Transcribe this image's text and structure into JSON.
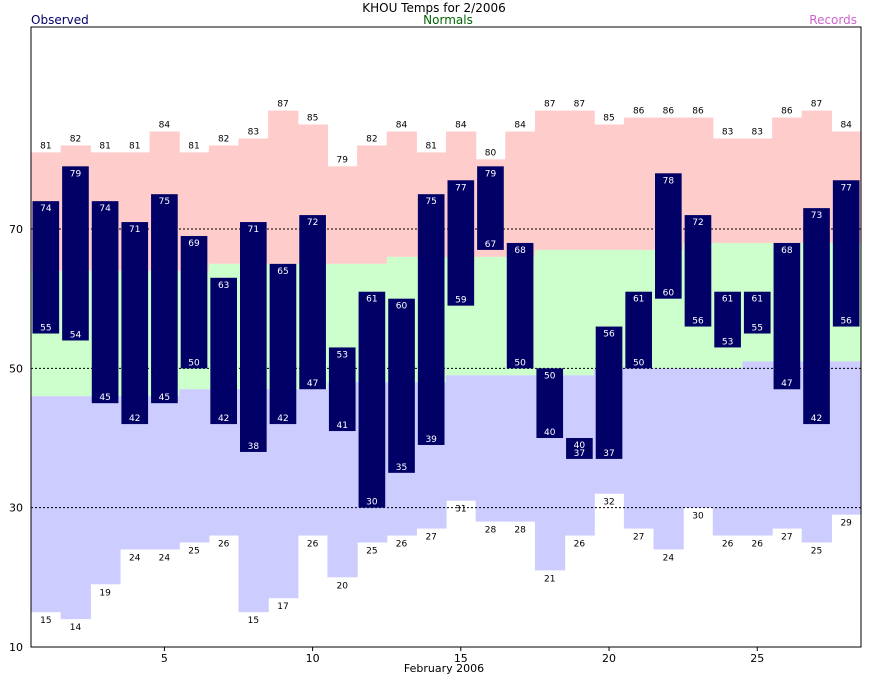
{
  "chart_data": {
    "type": "bar",
    "title": "KHOU Temps for 2/2006",
    "xlabel": "February 2006",
    "ylabel": "",
    "legend": {
      "left": "Observed",
      "center": "Normals",
      "right": "Records"
    },
    "x_ticks": [
      5,
      10,
      15,
      20,
      25
    ],
    "y_ticks": [
      10,
      30,
      50,
      70
    ],
    "ylim": [
      10,
      99
    ],
    "xlim": [
      0.5,
      28.5
    ],
    "grid": "dashed at 30, 50, 70",
    "days": [
      1,
      2,
      3,
      4,
      5,
      6,
      7,
      8,
      9,
      10,
      11,
      12,
      13,
      14,
      15,
      16,
      17,
      18,
      19,
      20,
      21,
      22,
      23,
      24,
      25,
      26,
      27,
      28
    ],
    "record_high": [
      81,
      82,
      81,
      81,
      84,
      81,
      82,
      83,
      87,
      85,
      79,
      82,
      84,
      81,
      84,
      80,
      84,
      87,
      87,
      85,
      86,
      86,
      86,
      83,
      83,
      86,
      87,
      84
    ],
    "normal_high": [
      64,
      64,
      64,
      64,
      64,
      64,
      65,
      65,
      65,
      65,
      65,
      65,
      66,
      66,
      66,
      66,
      66,
      67,
      67,
      67,
      67,
      67,
      68,
      68,
      68,
      68,
      68,
      68
    ],
    "normal_low": [
      46,
      46,
      46,
      46,
      46,
      47,
      47,
      47,
      47,
      47,
      48,
      48,
      48,
      48,
      49,
      49,
      49,
      49,
      49,
      50,
      50,
      50,
      50,
      50,
      51,
      51,
      51,
      51
    ],
    "record_low": [
      15,
      14,
      19,
      24,
      24,
      25,
      26,
      15,
      17,
      26,
      20,
      25,
      26,
      27,
      31,
      28,
      28,
      21,
      26,
      32,
      27,
      24,
      30,
      26,
      26,
      27,
      25,
      29
    ],
    "observed_high": [
      74,
      79,
      74,
      71,
      75,
      69,
      63,
      71,
      65,
      72,
      53,
      61,
      60,
      75,
      77,
      79,
      68,
      50,
      40,
      56,
      61,
      78,
      72,
      61,
      61,
      68,
      73,
      77
    ],
    "observed_low": [
      55,
      54,
      45,
      42,
      45,
      50,
      42,
      38,
      42,
      47,
      41,
      30,
      35,
      39,
      59,
      67,
      50,
      40,
      37,
      37,
      50,
      60,
      56,
      53,
      55,
      47,
      42,
      56
    ],
    "colors": {
      "record_band": "#ffcccc",
      "normal_band": "#ccffcc",
      "low_band": "#ccccff",
      "observed_bar": "#000066",
      "observed_text": "#ffffff",
      "record_text": "#000000",
      "title_color": "#000000",
      "observed_legend": "#000066",
      "normals_legend": "#006600",
      "records_legend": "#cc66cc",
      "gridline": "#000000"
    }
  }
}
